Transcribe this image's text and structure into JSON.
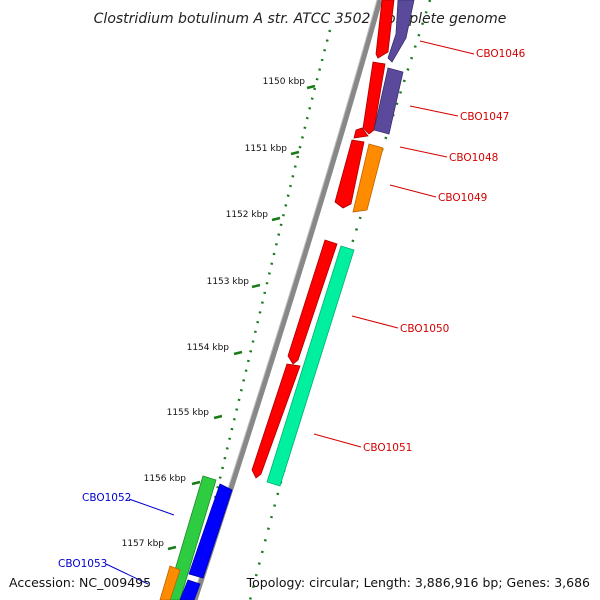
{
  "title": "Clostridium botulinum A str. ATCC 3502, complete genome",
  "accession": "Accession: NC_009495",
  "summary": "Topology: circular; Length: 3,886,916 bp; Genes: 3,686",
  "scale_labels": [
    "1150 kbp",
    "1151 kbp",
    "1152 kbp",
    "1153 kbp",
    "1154 kbp",
    "1155 kbp",
    "1156 kbp",
    "1157 kbp"
  ],
  "gene_labels": [
    {
      "text": "CBO1046",
      "color": "#d40000"
    },
    {
      "text": "CBO1047",
      "color": "#d40000"
    },
    {
      "text": "CBO1048",
      "color": "#d40000"
    },
    {
      "text": "CBO1049",
      "color": "#d40000"
    },
    {
      "text": "CBO1050",
      "color": "#d40000"
    },
    {
      "text": "CBO1051",
      "color": "#d40000"
    },
    {
      "text": "CBO1052",
      "color": "#0000cc"
    },
    {
      "text": "CBO1053",
      "color": "#0000cc"
    }
  ],
  "colors": {
    "cds": "#ff0000",
    "blast_purple": "#5b4a9b",
    "blast_orange": "#ff8c00",
    "blast_teal": "#00f0a0",
    "blast_green": "#2ecc40",
    "blast_blue": "#0000ff",
    "backbone": "#888888",
    "ticks": "#1a7a1a"
  }
}
